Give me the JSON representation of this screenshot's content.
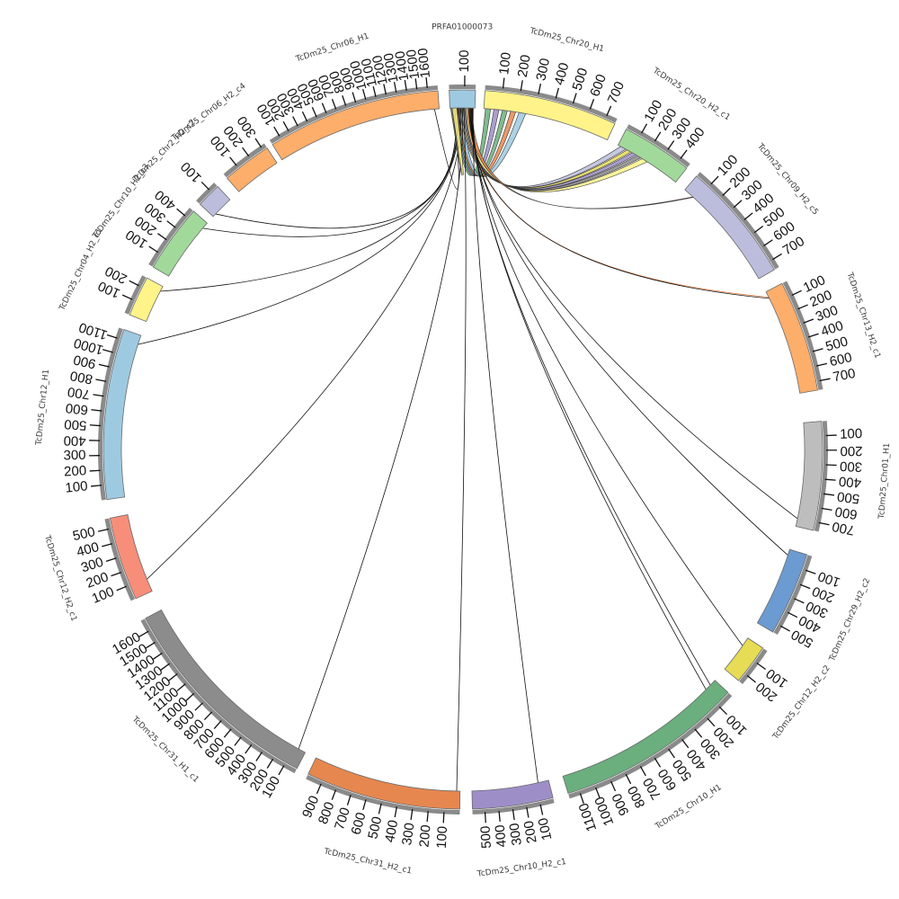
{
  "chart_data": {
    "type": "chord",
    "title": "",
    "segments": [
      {
        "id": "PRFA01000073",
        "label": "PRFA01000073",
        "length": 170,
        "color": "#9ecae1"
      },
      {
        "id": "chr20h1",
        "label": "TcDm25_Chr20_H1",
        "length": 760,
        "color": "#fff38a"
      },
      {
        "id": "chr20h2c1",
        "label": "TcDm25_Chr20_H2_c1",
        "length": 470,
        "color": "#a1d99b"
      },
      {
        "id": "chr09h2c5",
        "label": "TcDm25_Chr09_H2_c5",
        "length": 760,
        "color": "#bcbddc"
      },
      {
        "id": "chr13h2c1",
        "label": "TcDm25_Chr13_H2_c1",
        "length": 760,
        "color": "#fdae6b"
      },
      {
        "id": "chr01h1",
        "label": "TcDm25_Chr01_H1",
        "length": 760,
        "color": "#bdbdbd"
      },
      {
        "id": "chr29h2c2",
        "label": "TcDm25_Chr29_H2_c2",
        "length": 560,
        "color": "#6b9bd1"
      },
      {
        "id": "chr12h2c2",
        "label": "TcDm25_Chr12_H2_c2",
        "length": 260,
        "color": "#e6dc55"
      },
      {
        "id": "chr10h1",
        "label": "TcDm25_Chr10_H1",
        "length": 1170,
        "color": "#6aaf7d"
      },
      {
        "id": "chr10h2c1",
        "label": "TcDm25_Chr10_H2_c1",
        "length": 590,
        "color": "#9e8ec8"
      },
      {
        "id": "chr31h2c1",
        "label": "TcDm25_Chr31_H2_c1",
        "length": 1000,
        "color": "#e6874f"
      },
      {
        "id": "chr31h1c1",
        "label": "TcDm25_Chr31_H1_c1",
        "length": 1700,
        "color": "#8c8c8c"
      },
      {
        "id": "chr12h2c1",
        "label": "TcDm25_Chr12_H2_c1",
        "length": 570,
        "color": "#f78e7a"
      },
      {
        "id": "chr12h1",
        "label": "TcDm25_Chr12_H1",
        "length": 1170,
        "color": "#9ecae1"
      },
      {
        "id": "chr04h2c1",
        "label": "TcDm25_Chr04_H2_c1",
        "length": 270,
        "color": "#fff38a"
      },
      {
        "id": "chr10h2c3",
        "label": "TcDm25_Chr10_H2_c3",
        "length": 460,
        "color": "#a1d99b"
      },
      {
        "id": "chr2h2c2",
        "label": "TcDm25_Chr2_H2_c2",
        "length": 150,
        "color": "#bcbddc"
      },
      {
        "id": "chr06h2c4",
        "label": "TcDm25_Chr06_H2_c4",
        "length": 330,
        "color": "#fdae6b"
      },
      {
        "id": "chr06h1",
        "label": "TcDm25_Chr06_H1",
        "length": 1700,
        "color": "#fdae6b"
      }
    ],
    "ticks": [
      {
        "segment": "PRFA01000073",
        "labels": [
          "100"
        ]
      },
      {
        "segment": "chr20h1",
        "labels": [
          "100",
          "200",
          "300",
          "400",
          "500",
          "600",
          "700"
        ]
      },
      {
        "segment": "chr20h2c1",
        "labels": [
          "100",
          "200",
          "300",
          "400"
        ]
      },
      {
        "segment": "chr09h2c5",
        "labels": [
          "100",
          "200",
          "300",
          "400",
          "500",
          "600",
          "700"
        ]
      },
      {
        "segment": "chr13h2c1",
        "labels": [
          "100",
          "200",
          "300",
          "400",
          "500",
          "600",
          "700"
        ]
      },
      {
        "segment": "chr01h1",
        "labels": [
          "100",
          "200",
          "300",
          "400",
          "500",
          "600",
          "700"
        ]
      },
      {
        "segment": "chr29h2c2",
        "labels": [
          "100",
          "200",
          "300",
          "400",
          "500"
        ]
      },
      {
        "segment": "chr12h2c2",
        "labels": [
          "100",
          "200"
        ]
      },
      {
        "segment": "chr10h1",
        "labels": [
          "100",
          "200",
          "300",
          "400",
          "500",
          "600",
          "700",
          "800",
          "900",
          "1000",
          "1100"
        ]
      },
      {
        "segment": "chr10h2c1",
        "labels": [
          "100",
          "200",
          "300",
          "400",
          "500"
        ]
      },
      {
        "segment": "chr31h2c1",
        "labels": [
          "100",
          "200",
          "300",
          "400",
          "500",
          "600",
          "700",
          "800",
          "900"
        ]
      },
      {
        "segment": "chr31h1c1",
        "labels": [
          "100",
          "200",
          "300",
          "400",
          "500",
          "600",
          "700",
          "800",
          "900",
          "1000",
          "1100",
          "1200",
          "1300",
          "1400",
          "1500",
          "1600"
        ]
      },
      {
        "segment": "chr12h2c1",
        "labels": [
          "100",
          "200",
          "300",
          "400",
          "500"
        ]
      },
      {
        "segment": "chr12h1",
        "labels": [
          "100",
          "200",
          "300",
          "400",
          "500",
          "600",
          "700",
          "800",
          "900",
          "1000",
          "1100"
        ]
      },
      {
        "segment": "chr04h2c1",
        "labels": [
          "100",
          "200"
        ]
      },
      {
        "segment": "chr10h2c3",
        "labels": [
          "100",
          "200",
          "300",
          "400"
        ]
      },
      {
        "segment": "chr2h2c2",
        "labels": [
          "100"
        ]
      },
      {
        "segment": "chr06h2c4",
        "labels": [
          "100",
          "200",
          "300"
        ]
      },
      {
        "segment": "chr06h1",
        "labels": [
          "100",
          "200",
          "300",
          "400",
          "500",
          "600",
          "700",
          "800",
          "900",
          "1000",
          "1100",
          "1200",
          "1300",
          "1400",
          "1500",
          "1600"
        ]
      }
    ],
    "links": [
      {
        "from": "PRFA01000073",
        "from_pos": 20,
        "to": "chr20h1",
        "to_pos": [
          10,
          40
        ],
        "color": "#6aaf7d",
        "style": "ribbon"
      },
      {
        "from": "PRFA01000073",
        "from_pos": 30,
        "to": "chr20h1",
        "to_pos": [
          60,
          90
        ],
        "color": "#9e8ec8",
        "style": "ribbon"
      },
      {
        "from": "PRFA01000073",
        "from_pos": 40,
        "to": "chr20h1",
        "to_pos": [
          110,
          140
        ],
        "color": "#6aaf7d",
        "style": "ribbon"
      },
      {
        "from": "PRFA01000073",
        "from_pos": 50,
        "to": "chr20h1",
        "to_pos": [
          160,
          190
        ],
        "color": "#e6874f",
        "style": "ribbon"
      },
      {
        "from": "PRFA01000073",
        "from_pos": 60,
        "to": "chr20h1",
        "to_pos": [
          210,
          250
        ],
        "color": "#9ecae1",
        "style": "ribbon"
      },
      {
        "from": "PRFA01000073",
        "from_pos": 70,
        "to": "chr20h2c1",
        "to_pos": [
          20,
          60
        ],
        "color": "#bcbddc",
        "style": "ribbon"
      },
      {
        "from": "PRFA01000073",
        "from_pos": 80,
        "to": "chr20h2c1",
        "to_pos": [
          70,
          100
        ],
        "color": "#e6dc55",
        "style": "ribbon"
      },
      {
        "from": "PRFA01000073",
        "from_pos": 90,
        "to": "chr20h2c1",
        "to_pos": [
          110,
          140
        ],
        "color": "#9e8ec8",
        "style": "ribbon"
      },
      {
        "from": "PRFA01000073",
        "from_pos": 100,
        "to": "chr20h2c1",
        "to_pos": [
          150,
          180
        ],
        "color": "#8c8c8c",
        "style": "ribbon"
      },
      {
        "from": "PRFA01000073",
        "from_pos": 110,
        "to": "chr20h2c1",
        "to_pos": [
          190,
          230
        ],
        "color": "#fff38a",
        "style": "ribbon"
      },
      {
        "from": "PRFA01000073",
        "from_pos": 120,
        "to": "chr09h2c5",
        "to_pos": [
          70,
          75
        ],
        "color": "#e6874f",
        "style": "ribbon"
      },
      {
        "from": "PRFA01000073",
        "from_pos": 125,
        "to": "chr13h2c1",
        "to_pos": [
          40,
          45
        ],
        "color": "#e6874f",
        "style": "line"
      },
      {
        "from": "PRFA01000073",
        "from_pos": 130,
        "to": "chr13h2c1",
        "to_pos": [
          50,
          55
        ],
        "color": "#111111",
        "style": "line"
      },
      {
        "from": "PRFA01000073",
        "from_pos": 135,
        "to": "chr01h1",
        "to_pos": [
          700,
          705
        ],
        "color": "#111111",
        "style": "line"
      },
      {
        "from": "PRFA01000073",
        "from_pos": 140,
        "to": "chr29h2c2",
        "to_pos": [
          40,
          45
        ],
        "color": "#111111",
        "style": "line"
      },
      {
        "from": "PRFA01000073",
        "from_pos": 145,
        "to": "chr12h2c2",
        "to_pos": [
          60,
          65
        ],
        "color": "#111111",
        "style": "line"
      },
      {
        "from": "PRFA01000073",
        "from_pos": 150,
        "to": "chr10h1",
        "to_pos": [
          40,
          45
        ],
        "color": "#111111",
        "style": "line"
      },
      {
        "from": "PRFA01000073",
        "from_pos": 155,
        "to": "chr10h1",
        "to_pos": [
          80,
          85
        ],
        "color": "#111111",
        "style": "line"
      },
      {
        "from": "PRFA01000073",
        "from_pos": 158,
        "to": "chr10h2c1",
        "to_pos": [
          80,
          85
        ],
        "color": "#111111",
        "style": "line"
      },
      {
        "from": "PRFA01000073",
        "from_pos": 95,
        "to": "chr31h2c1",
        "to_pos": [
          20,
          25
        ],
        "color": "#111111",
        "style": "line"
      },
      {
        "from": "PRFA01000073",
        "from_pos": 85,
        "to": "chr31h1c1",
        "to_pos": [
          60,
          65
        ],
        "color": "#111111",
        "style": "line"
      },
      {
        "from": "PRFA01000073",
        "from_pos": 75,
        "to": "chr12h2c1",
        "to_pos": [
          90,
          95
        ],
        "color": "#111111",
        "style": "line"
      },
      {
        "from": "PRFA01000073",
        "from_pos": 65,
        "to": "chr12h1",
        "to_pos": [
          1100,
          1105
        ],
        "color": "#111111",
        "style": "line"
      },
      {
        "from": "PRFA01000073",
        "from_pos": 55,
        "to": "chr04h2c1",
        "to_pos": [
          230,
          235
        ],
        "color": "#111111",
        "style": "line"
      },
      {
        "from": "PRFA01000073",
        "from_pos": 45,
        "to": "chr10h2c3",
        "to_pos": [
          410,
          415
        ],
        "color": "#111111",
        "style": "line"
      },
      {
        "from": "PRFA01000073",
        "from_pos": 35,
        "to": "chr2h2c2",
        "to_pos": [
          20,
          25
        ],
        "color": "#111111",
        "style": "line"
      },
      {
        "from": "PRFA01000073",
        "from_pos": 25,
        "to": "chr06h1",
        "to_pos": [
          1650,
          1655
        ],
        "color": "#111111",
        "style": "line"
      },
      {
        "from": "PRFA01000073",
        "from_pos": 15,
        "to": "PRFA01000073",
        "to_pos": [
          5,
          10
        ],
        "color": "#fff38a",
        "style": "ribbon"
      }
    ]
  }
}
